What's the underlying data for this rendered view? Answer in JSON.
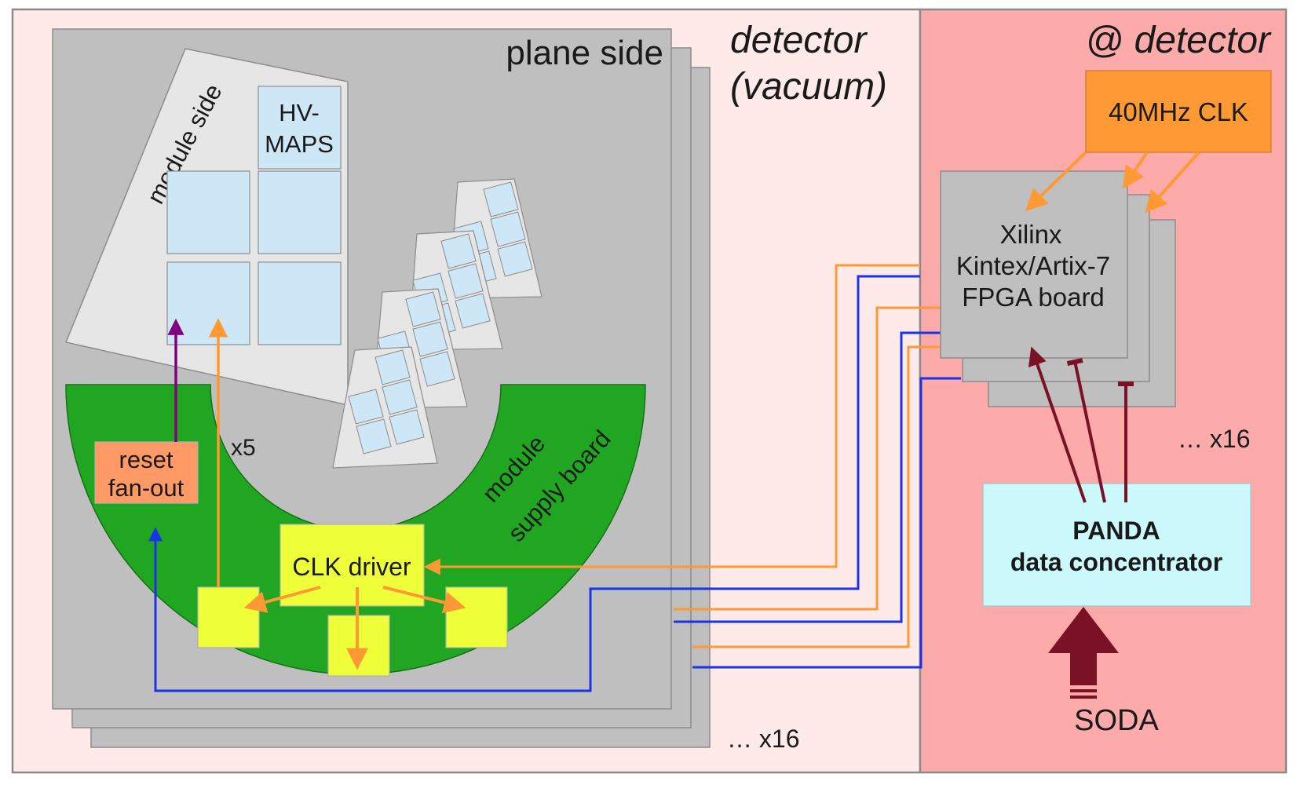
{
  "regions": {
    "vacuum_title_line1": "detector",
    "vacuum_title_line2": "(vacuum)",
    "at_detector_title": "@ detector"
  },
  "plane": {
    "title": "plane side",
    "copies_label": "… x16"
  },
  "module": {
    "title": "module side",
    "chip_label_line1": "HV-",
    "chip_label_line2": "MAPS"
  },
  "supply_board": {
    "label_line1": "module",
    "label_line2": "supply board",
    "multiplicity": "x5"
  },
  "reset_fanout": {
    "line1": "reset",
    "line2": "fan-out"
  },
  "clk_driver": {
    "label": "CLK driver"
  },
  "clock_source": {
    "label": "40MHz CLK"
  },
  "fpga_board": {
    "line1": "Xilinx",
    "line2": "Kintex/Artix-7",
    "line3": "FPGA board",
    "copies_label": "… x16"
  },
  "data_concentrator": {
    "line1": "PANDA",
    "line2": "data concentrator"
  },
  "soda": {
    "label": "SODA"
  },
  "colors": {
    "vacuum_bg": "#ffeaea",
    "at_detector_bg": "#fcaaaa",
    "plane_gray": "#bfbfbf",
    "module_light": "#e6e6e6",
    "chip_blue": "#cde7f6",
    "supply_green": "#21a621",
    "yellow": "#eeff3a",
    "reset_box": "#ff9966",
    "clk_orange": "#ff9933",
    "fpga_gray": "#bfbfbf",
    "concentrator_cyan": "#ccf9fb",
    "line_orange": "#ff9933",
    "line_blue": "#1a33e6",
    "line_purple": "#800080",
    "line_maroon": "#7a1125"
  }
}
